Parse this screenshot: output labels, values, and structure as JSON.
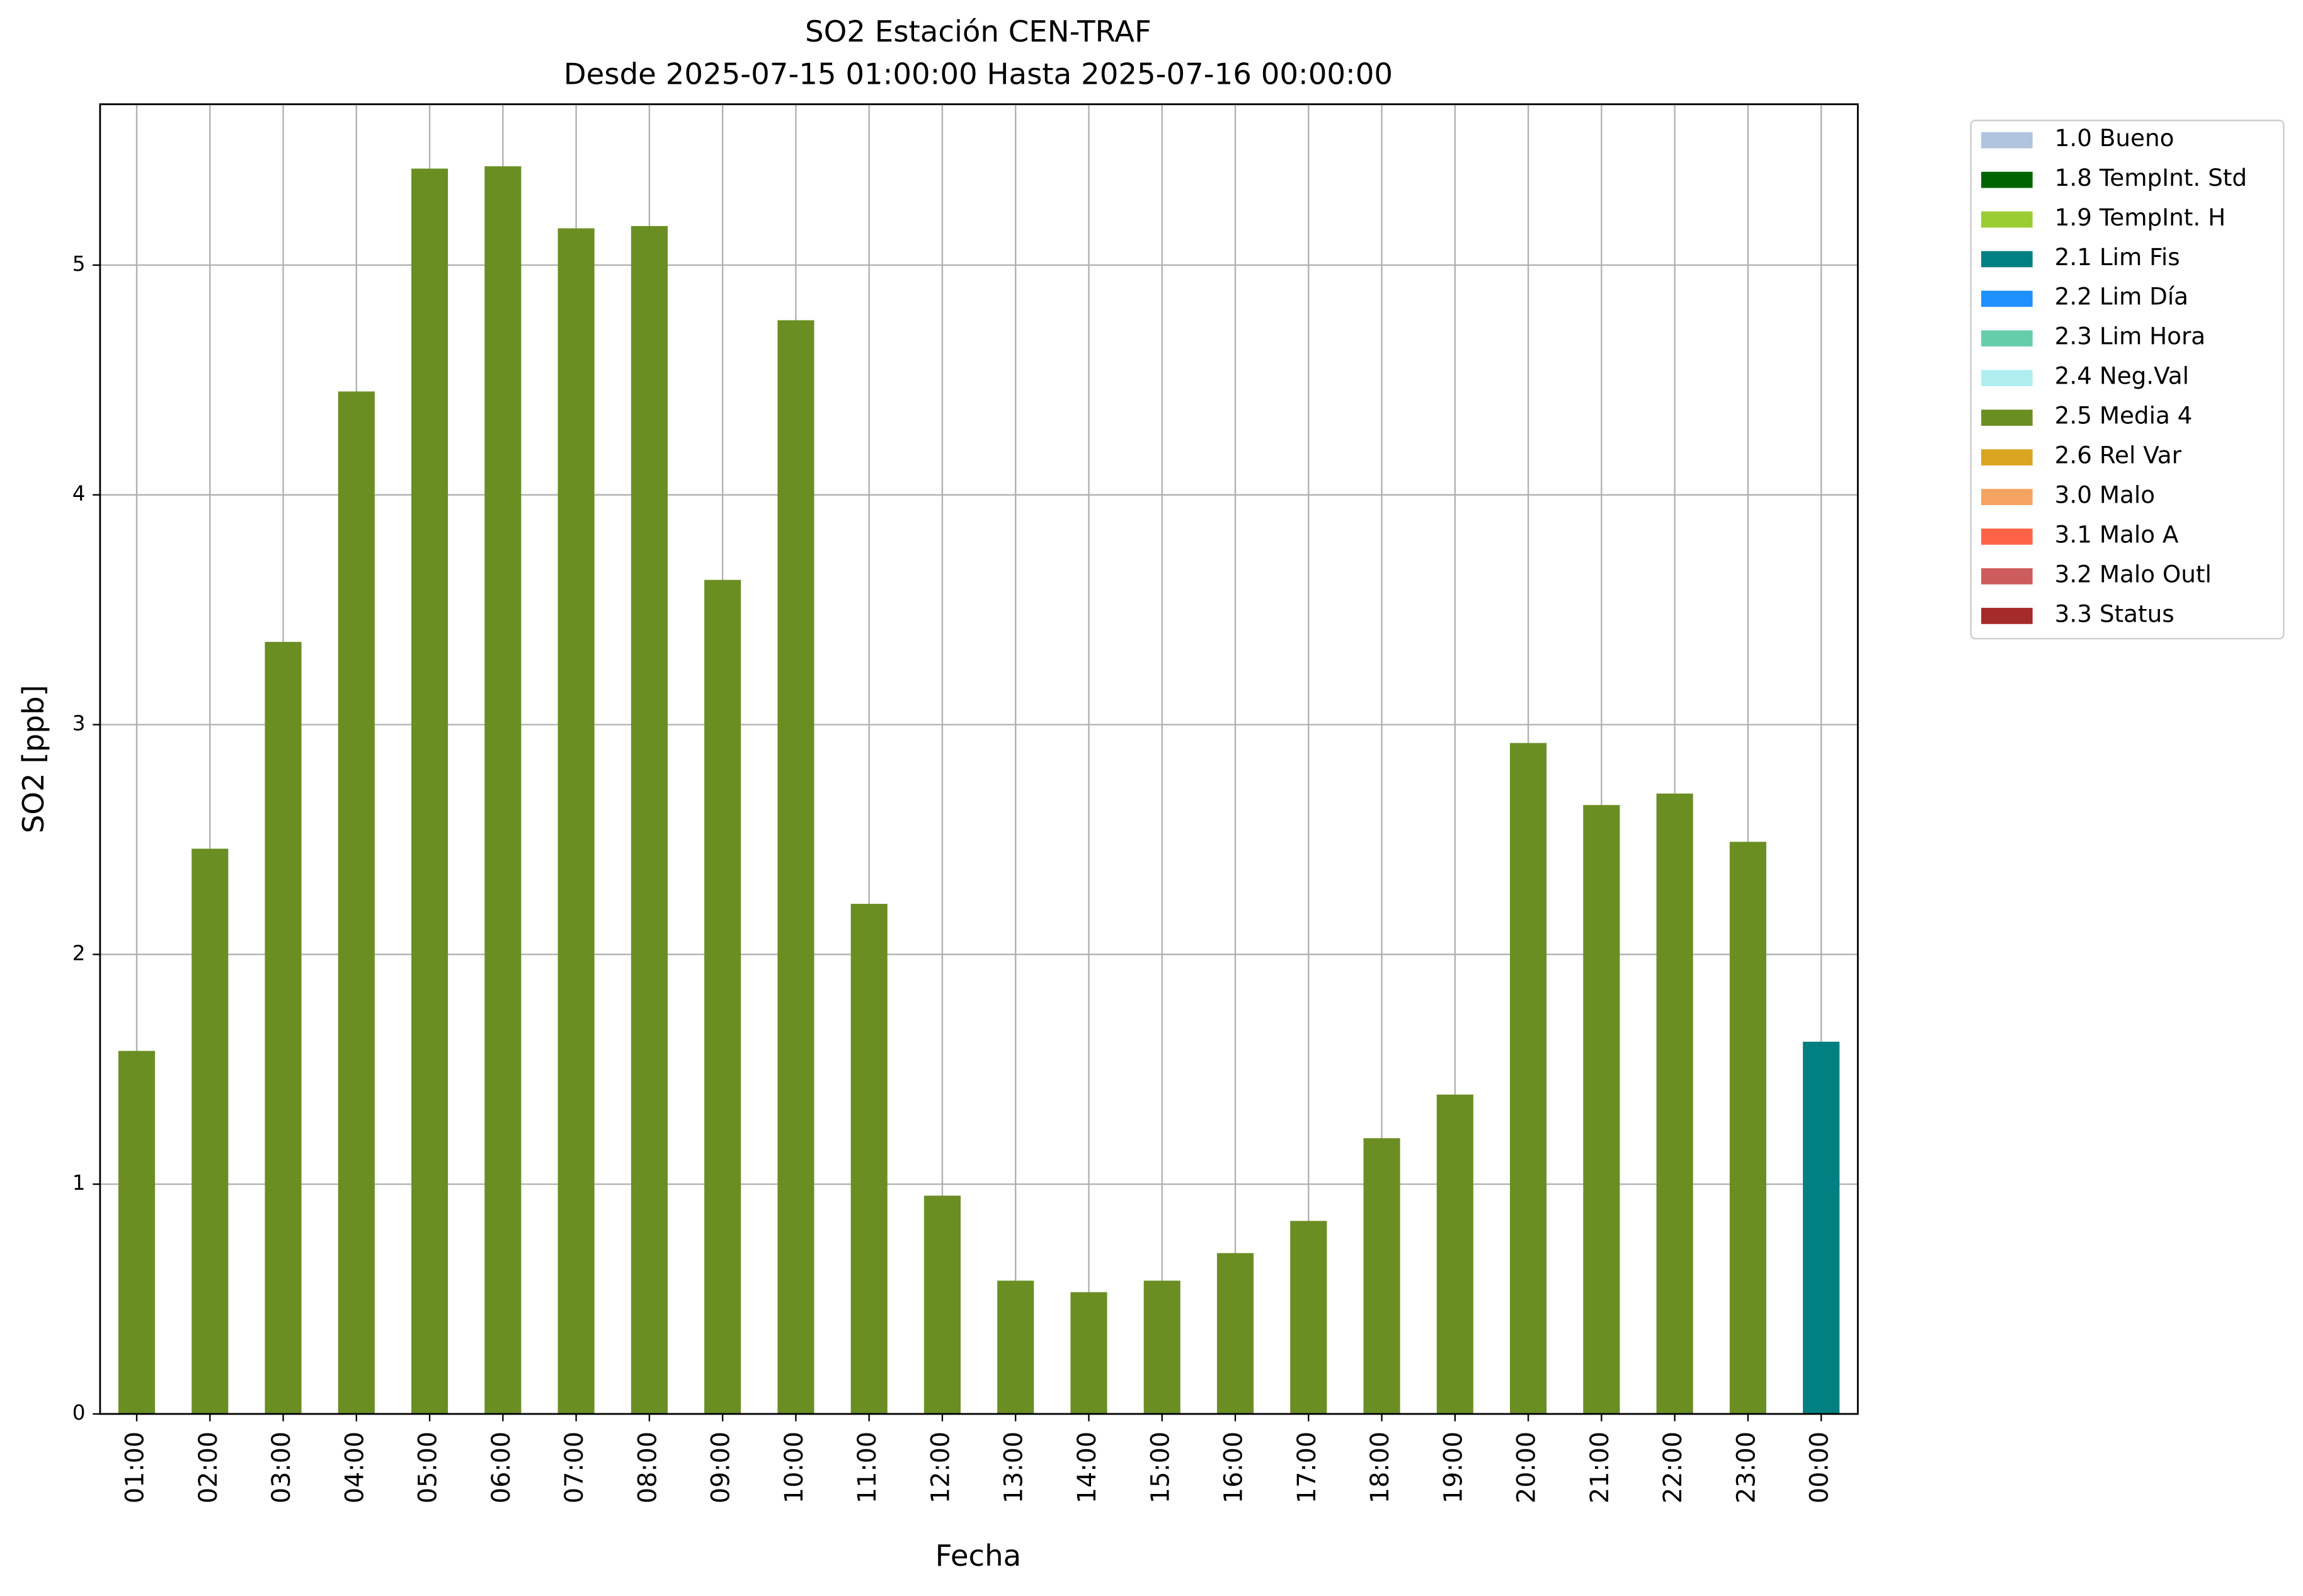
{
  "chart_data": {
    "type": "bar",
    "title": "SO2 Estación CEN-TRAF",
    "subtitle": "Desde 2025-07-15 01:00:00 Hasta 2025-07-16 00:00:00",
    "x_label": "Fecha",
    "y_label": "SO2 [ppb]",
    "categories": [
      "01:00",
      "02:00",
      "03:00",
      "04:00",
      "05:00",
      "06:00",
      "07:00",
      "08:00",
      "09:00",
      "10:00",
      "11:00",
      "12:00",
      "13:00",
      "14:00",
      "15:00",
      "16:00",
      "17:00",
      "18:00",
      "19:00",
      "20:00",
      "21:00",
      "22:00",
      "23:00",
      "00:00"
    ],
    "ylim": [
      0,
      5.7
    ],
    "yticks": [
      0,
      1,
      2,
      3,
      4,
      5
    ],
    "grid": true,
    "stacked": true,
    "legend": "upper right outside",
    "series": [
      {
        "name": "1.0 Bueno",
        "color": "#b0c4de",
        "values": [
          null,
          null,
          null,
          null,
          null,
          null,
          null,
          null,
          null,
          null,
          null,
          null,
          null,
          null,
          null,
          null,
          null,
          null,
          null,
          null,
          null,
          null,
          null,
          null
        ]
      },
      {
        "name": "1.8 TempInt. Std",
        "color": "#006400",
        "values": [
          null,
          null,
          null,
          null,
          null,
          null,
          null,
          null,
          null,
          null,
          null,
          null,
          null,
          null,
          null,
          null,
          null,
          null,
          null,
          null,
          null,
          null,
          null,
          null
        ]
      },
      {
        "name": "1.9 TempInt. H",
        "color": "#9acd32",
        "values": [
          null,
          null,
          null,
          null,
          null,
          null,
          null,
          null,
          null,
          null,
          null,
          null,
          null,
          null,
          null,
          null,
          null,
          null,
          null,
          null,
          null,
          null,
          null,
          null
        ]
      },
      {
        "name": "2.1 Lim Fis",
        "color": "#008080",
        "values": [
          null,
          null,
          null,
          null,
          null,
          null,
          null,
          null,
          null,
          null,
          null,
          null,
          null,
          null,
          null,
          null,
          null,
          null,
          null,
          null,
          null,
          null,
          null,
          1.62
        ]
      },
      {
        "name": "2.2 Lim Día",
        "color": "#1e90ff",
        "values": [
          null,
          null,
          null,
          null,
          null,
          null,
          null,
          null,
          null,
          null,
          null,
          null,
          null,
          null,
          null,
          null,
          null,
          null,
          null,
          null,
          null,
          null,
          null,
          null
        ]
      },
      {
        "name": "2.3 Lim Hora",
        "color": "#66cdaa",
        "values": [
          null,
          null,
          null,
          null,
          null,
          null,
          null,
          null,
          null,
          null,
          null,
          null,
          null,
          null,
          null,
          null,
          null,
          null,
          null,
          null,
          null,
          null,
          null,
          null
        ]
      },
      {
        "name": "2.4 Neg.Val",
        "color": "#afeeee",
        "values": [
          null,
          null,
          null,
          null,
          null,
          null,
          null,
          null,
          null,
          null,
          null,
          null,
          null,
          null,
          null,
          null,
          null,
          null,
          null,
          null,
          null,
          null,
          null,
          null
        ]
      },
      {
        "name": "2.5 Media 4",
        "color": "#6b8e23",
        "values": [
          1.58,
          2.46,
          3.36,
          4.45,
          5.42,
          5.43,
          5.16,
          5.17,
          3.63,
          4.76,
          2.22,
          0.95,
          0.58,
          0.53,
          0.58,
          0.7,
          0.84,
          1.2,
          1.39,
          2.92,
          2.65,
          2.7,
          2.49,
          null
        ]
      },
      {
        "name": "2.6 Rel Var",
        "color": "#daa520",
        "values": [
          null,
          null,
          null,
          null,
          null,
          null,
          null,
          null,
          null,
          null,
          null,
          null,
          null,
          null,
          null,
          null,
          null,
          null,
          null,
          null,
          null,
          null,
          null,
          null
        ]
      },
      {
        "name": "3.0 Malo",
        "color": "#f4a460",
        "values": [
          null,
          null,
          null,
          null,
          null,
          null,
          null,
          null,
          null,
          null,
          null,
          null,
          null,
          null,
          null,
          null,
          null,
          null,
          null,
          null,
          null,
          null,
          null,
          null
        ]
      },
      {
        "name": "3.1 Malo A",
        "color": "#ff6347",
        "values": [
          null,
          null,
          null,
          null,
          null,
          null,
          null,
          null,
          null,
          null,
          null,
          null,
          null,
          null,
          null,
          null,
          null,
          null,
          null,
          null,
          null,
          null,
          null,
          null
        ]
      },
      {
        "name": "3.2 Malo Outl",
        "color": "#cd5c5c",
        "values": [
          null,
          null,
          null,
          null,
          null,
          null,
          null,
          null,
          null,
          null,
          null,
          null,
          null,
          null,
          null,
          null,
          null,
          null,
          null,
          null,
          null,
          null,
          null,
          null
        ]
      },
      {
        "name": "3.3 Status",
        "color": "#a52a2a",
        "values": [
          null,
          null,
          null,
          null,
          null,
          null,
          null,
          null,
          null,
          null,
          null,
          null,
          null,
          null,
          null,
          null,
          null,
          null,
          null,
          null,
          null,
          null,
          null,
          null
        ]
      }
    ]
  }
}
